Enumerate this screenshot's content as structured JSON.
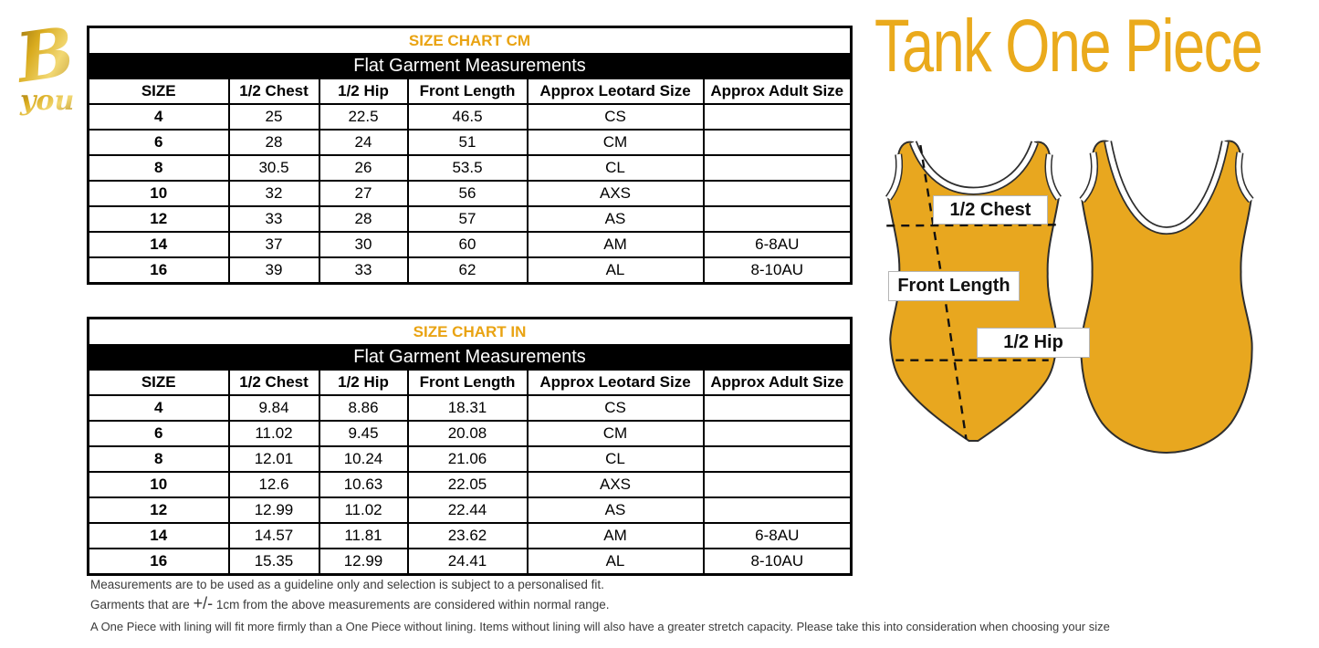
{
  "brand": {
    "letter": "B",
    "word": "you"
  },
  "title": "Tank One Piece",
  "colors": {
    "gold_title": "#EAAA1C",
    "gold_table_title": "#E9A312",
    "leotard_fill": "#E8A71F",
    "banner_bg": "#000000",
    "banner_text": "#FFFFFF",
    "note_text": "#3B3B3B"
  },
  "tables": [
    {
      "title": "SIZE CHART CM",
      "banner": "Flat Garment Measurements",
      "columns": [
        "SIZE",
        "1/2 Chest",
        "1/2 Hip",
        "Front Length",
        "Approx Leotard Size",
        "Approx Adult Size"
      ],
      "rows": [
        [
          "4",
          "25",
          "22.5",
          "46.5",
          "CS",
          ""
        ],
        [
          "6",
          "28",
          "24",
          "51",
          "CM",
          ""
        ],
        [
          "8",
          "30.5",
          "26",
          "53.5",
          "CL",
          ""
        ],
        [
          "10",
          "32",
          "27",
          "56",
          "AXS",
          ""
        ],
        [
          "12",
          "33",
          "28",
          "57",
          "AS",
          ""
        ],
        [
          "14",
          "37",
          "30",
          "60",
          "AM",
          "6-8AU"
        ],
        [
          "16",
          "39",
          "33",
          "62",
          "AL",
          "8-10AU"
        ]
      ]
    },
    {
      "title": "SIZE CHART IN",
      "banner": "Flat Garment Measurements",
      "columns": [
        "SIZE",
        "1/2 Chest",
        "1/2 Hip",
        "Front Length",
        "Approx Leotard Size",
        "Approx Adult Size"
      ],
      "rows": [
        [
          "4",
          "9.84",
          "8.86",
          "18.31",
          "CS",
          ""
        ],
        [
          "6",
          "11.02",
          "9.45",
          "20.08",
          "CM",
          ""
        ],
        [
          "8",
          "12.01",
          "10.24",
          "21.06",
          "CL",
          ""
        ],
        [
          "10",
          "12.6",
          "10.63",
          "22.05",
          "AXS",
          ""
        ],
        [
          "12",
          "12.99",
          "11.02",
          "22.44",
          "AS",
          ""
        ],
        [
          "14",
          "14.57",
          "11.81",
          "23.62",
          "AM",
          "6-8AU"
        ],
        [
          "16",
          "15.35",
          "12.99",
          "24.41",
          "AL",
          "8-10AU"
        ]
      ]
    }
  ],
  "diagram_labels": {
    "chest": "1/2 Chest",
    "front_length": "Front Length",
    "hip": "1/2 Hip"
  },
  "notes": {
    "line1": "Measurements are to be used as a guideline only and selection is subject to a personalised fit.",
    "line2_prefix": "Garments that are ",
    "line2_symbol": "+/-",
    "line2_suffix": " 1cm from the above measurements are considered within normal range.",
    "line3": "A One Piece with lining will fit more firmly than a One Piece without lining.  Items without lining will also have a greater stretch capacity. Please take this into consideration when choosing your size"
  }
}
